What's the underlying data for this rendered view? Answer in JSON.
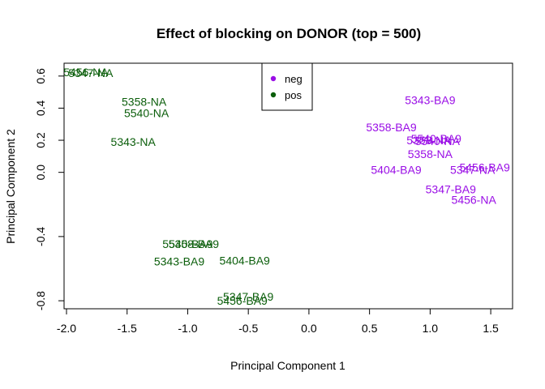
{
  "chart_data": {
    "type": "scatter",
    "title": "Effect of blocking on DONOR (top = 500)",
    "xlabel": "Principal Component 1",
    "ylabel": "Principal Component 2",
    "xlim": [
      -2.02,
      1.68
    ],
    "ylim": [
      -0.85,
      0.68
    ],
    "xticks": [
      -2.0,
      -1.5,
      -1.0,
      -0.5,
      0.0,
      0.5,
      1.0,
      1.5
    ],
    "xtick_labels": [
      "-2.0",
      "-1.5",
      "-1.0",
      "-0.5",
      "0.0",
      "0.5",
      "1.0",
      "1.5"
    ],
    "yticks": [
      -0.8,
      -0.4,
      0.0,
      0.2,
      0.4,
      0.6
    ],
    "ytick_labels": [
      "-0.8",
      "-0.4",
      "0.0",
      "0.2",
      "0.4",
      "0.6"
    ],
    "grid": false,
    "legend": {
      "placement": "top-center",
      "entries": [
        {
          "name": "neg",
          "color": "#9a0ee6"
        },
        {
          "name": "pos",
          "color": "#0b5e0b"
        }
      ]
    },
    "series": [
      {
        "name": "neg",
        "color": "#9a0ee6",
        "points": [
          {
            "label": "5343-BA9",
            "x": 1.0,
            "y": 0.45
          },
          {
            "label": "5358-BA9",
            "x": 0.68,
            "y": 0.28
          },
          {
            "label": "5540-BA9",
            "x": 1.05,
            "y": 0.21
          },
          {
            "label": "5358-NA",
            "x": 0.99,
            "y": 0.2
          },
          {
            "label": "5540-NA",
            "x": 1.06,
            "y": 0.195
          },
          {
            "label": "5358-NA",
            "x": 1.0,
            "y": 0.115
          },
          {
            "label": "5456-BA9",
            "x": 1.45,
            "y": 0.03
          },
          {
            "label": "5404-BA9",
            "x": 0.72,
            "y": 0.015
          },
          {
            "label": "5347-NA",
            "x": 1.35,
            "y": 0.015
          },
          {
            "label": "5347-BA9",
            "x": 1.17,
            "y": -0.105
          },
          {
            "label": "5456-NA",
            "x": 1.36,
            "y": -0.17
          }
        ]
      },
      {
        "name": "pos",
        "color": "#0b5e0b",
        "points": [
          {
            "label": "5456-NA",
            "x": -1.84,
            "y": 0.625
          },
          {
            "label": "5347-NA",
            "x": -1.8,
            "y": 0.62
          },
          {
            "label": "5358-NA",
            "x": -1.36,
            "y": 0.44
          },
          {
            "label": "5540-NA",
            "x": -1.34,
            "y": 0.37
          },
          {
            "label": "5343-NA",
            "x": -1.45,
            "y": 0.19
          },
          {
            "label": "5540-BA9",
            "x": -1.0,
            "y": -0.445
          },
          {
            "label": "5358-BA9",
            "x": -0.95,
            "y": -0.445
          },
          {
            "label": "5343-BA9",
            "x": -1.07,
            "y": -0.555
          },
          {
            "label": "5404-BA9",
            "x": -0.53,
            "y": -0.55
          },
          {
            "label": "5347-BA9",
            "x": -0.5,
            "y": -0.775
          },
          {
            "label": "5456-BA9",
            "x": -0.55,
            "y": -0.8
          }
        ]
      }
    ]
  }
}
